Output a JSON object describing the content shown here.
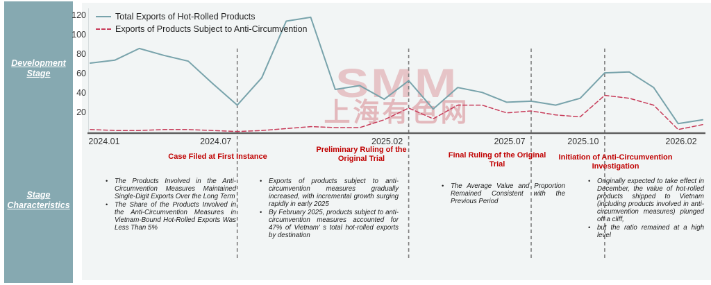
{
  "sidebar": {
    "top_label": "Development Stage",
    "bottom_label": "Stage Characteristics"
  },
  "legend": {
    "series1_label": "Total Exports of Hot-Rolled Products",
    "series2_label": "Exports of Products Subject to Anti-Circumvention"
  },
  "watermark": {
    "line1": "SMM",
    "line2": "上海有色网"
  },
  "colors": {
    "sidebar_teal": "#86a9b1",
    "panel_gray": "#f2f5f5",
    "total_line": "#78a3ab",
    "anti_circumvention_line": "#c73a58",
    "stage_title_red": "#c00000",
    "axis_gray": "#606060"
  },
  "chart_data": {
    "type": "line",
    "x": [
      "2024.01",
      "2024.02",
      "2024.03",
      "2024.04",
      "2024.05",
      "2024.06",
      "2024.07",
      "2024.08",
      "2024.09",
      "2024.10",
      "2024.11",
      "2024.12",
      "2025.01",
      "2025.02",
      "2025.03",
      "2025.04",
      "2025.05",
      "2025.06",
      "2025.07",
      "2025.08",
      "2025.09",
      "2025.10",
      "2025.11",
      "2025.12",
      "2026.01",
      "2026.02"
    ],
    "series": [
      {
        "name": "Total Exports of Hot-Rolled Products",
        "color": "#78a3ab",
        "dash": false,
        "values": [
          71,
          74,
          86,
          79,
          73,
          50,
          28,
          56,
          114,
          118,
          44,
          48,
          34,
          53,
          24,
          46,
          41,
          31,
          32,
          28,
          35,
          61,
          62,
          46,
          9,
          13
        ]
      },
      {
        "name": "Exports of Products Subject to Anti-Circumvention",
        "color": "#c73a58",
        "dash": true,
        "values": [
          3,
          2,
          2,
          3,
          3,
          2,
          1,
          2,
          4,
          6,
          5,
          5,
          13,
          25,
          14,
          28,
          28,
          20,
          22,
          18,
          16,
          38,
          35,
          28,
          3,
          8
        ]
      }
    ],
    "ylim": [
      0,
      120
    ],
    "yticks": [
      20,
      40,
      60,
      80,
      100,
      120
    ],
    "xtick_labels": [
      "2024.01",
      "2024.07",
      "2025.02",
      "2025.07",
      "2025.10",
      "2026.02"
    ],
    "grid": false,
    "legend_position": "top-left",
    "title": "",
    "xlabel": "",
    "ylabel": ""
  },
  "stages": [
    {
      "month": "2024.07",
      "title": "Case Filed at First Instance",
      "bullets": [
        "The Products Involved in the Anti-Circumvention Measures Maintained Single-Digit Exports Over the Long Term",
        "The Share of the Products Involved in the Anti-Circumvention Measures in Vietnam-Bound Hot-Rolled Exports Was Less Than 5%"
      ]
    },
    {
      "month": "2025.02",
      "title": "Preliminary Ruling of the Original Trial",
      "bullets": [
        "Exports of products subject to anti-circumvention measures gradually increased, with incremental growth surging rapidly in early 2025",
        "By February 2025, products subject to anti-circumvention measures accounted for 47% of Vietnam' s total hot-rolled exports by destination"
      ]
    },
    {
      "month": "2025.07",
      "title": "Final Ruling of the Original Trial",
      "bullets": [
        "The Average Value and Proportion Remained Consistent with the Previous Period"
      ]
    },
    {
      "month": "2025.10",
      "title": "Initiation of Anti-Circumvention Investigation",
      "bullets": [
        "Originally expected to take effect in December, the value of hot-rolled products shipped to Vietnam (including products involved in anti-circumvention measures) plunged off a cliff,",
        "but the ratio remained at a high level"
      ]
    }
  ]
}
